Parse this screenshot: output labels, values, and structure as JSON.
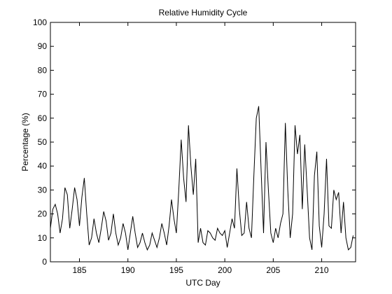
{
  "chart_data": {
    "type": "line",
    "title": "Relative Humidity Cycle",
    "xlabel": "UTC Day",
    "ylabel": "Percentage (%)",
    "x": [
      182,
      182.25,
      182.5,
      182.75,
      183,
      183.25,
      183.5,
      183.75,
      184,
      184.25,
      184.5,
      184.75,
      185,
      185.25,
      185.5,
      185.75,
      186,
      186.25,
      186.5,
      186.75,
      187,
      187.25,
      187.5,
      187.75,
      188,
      188.25,
      188.5,
      188.75,
      189,
      189.25,
      189.5,
      189.75,
      190,
      190.25,
      190.5,
      190.75,
      191,
      191.25,
      191.5,
      191.75,
      192,
      192.25,
      192.5,
      192.75,
      193,
      193.25,
      193.5,
      193.75,
      194,
      194.25,
      194.5,
      194.75,
      195,
      195.25,
      195.5,
      195.75,
      196,
      196.25,
      196.5,
      196.75,
      197,
      197.25,
      197.5,
      197.75,
      198,
      198.25,
      198.5,
      198.75,
      199,
      199.25,
      199.5,
      199.75,
      200,
      200.25,
      200.5,
      200.75,
      201,
      201.25,
      201.5,
      201.75,
      202,
      202.25,
      202.5,
      202.75,
      203,
      203.25,
      203.5,
      203.75,
      204,
      204.25,
      204.5,
      204.75,
      205,
      205.25,
      205.5,
      205.75,
      206,
      206.25,
      206.5,
      206.75,
      207,
      207.25,
      207.5,
      207.75,
      208,
      208.25,
      208.5,
      208.75,
      209,
      209.25,
      209.5,
      209.75,
      210,
      210.25,
      210.5,
      210.75,
      211,
      211.25,
      211.5,
      211.75,
      212,
      212.25,
      212.5,
      212.75,
      213,
      213.25
    ],
    "series": [
      {
        "name": "Relative Humidity",
        "color": "#000000",
        "values": [
          14,
          22,
          24,
          20,
          12,
          18,
          31,
          28,
          14,
          22,
          31,
          26,
          15,
          27,
          35,
          20,
          7,
          10,
          18,
          12,
          8,
          14,
          21,
          17,
          9,
          12,
          20,
          12,
          7,
          10,
          16,
          12,
          5,
          12,
          19,
          12,
          6,
          8,
          12,
          8,
          5,
          7,
          12,
          9,
          6,
          10,
          16,
          12,
          7,
          15,
          26,
          18,
          12,
          30,
          51,
          35,
          25,
          57,
          40,
          28,
          43,
          8,
          14,
          8,
          7,
          13,
          12,
          10,
          9,
          14,
          12,
          11,
          13,
          6,
          12,
          18,
          14,
          39,
          22,
          11,
          12,
          25,
          14,
          10,
          36,
          60,
          65,
          38,
          12,
          50,
          30,
          12,
          8,
          14,
          10,
          16,
          20,
          58,
          30,
          10,
          20,
          57,
          45,
          53,
          22,
          49,
          30,
          10,
          5,
          36,
          46,
          15,
          6,
          20,
          43,
          15,
          14,
          30,
          26,
          29,
          12,
          25,
          10,
          5,
          6,
          11
        ]
      }
    ],
    "xlim": [
      182,
      213.5
    ],
    "ylim": [
      0,
      100
    ],
    "xticks": [
      185,
      190,
      195,
      200,
      205,
      210
    ],
    "yticks": [
      0,
      10,
      20,
      30,
      40,
      50,
      60,
      70,
      80,
      90,
      100
    ]
  }
}
